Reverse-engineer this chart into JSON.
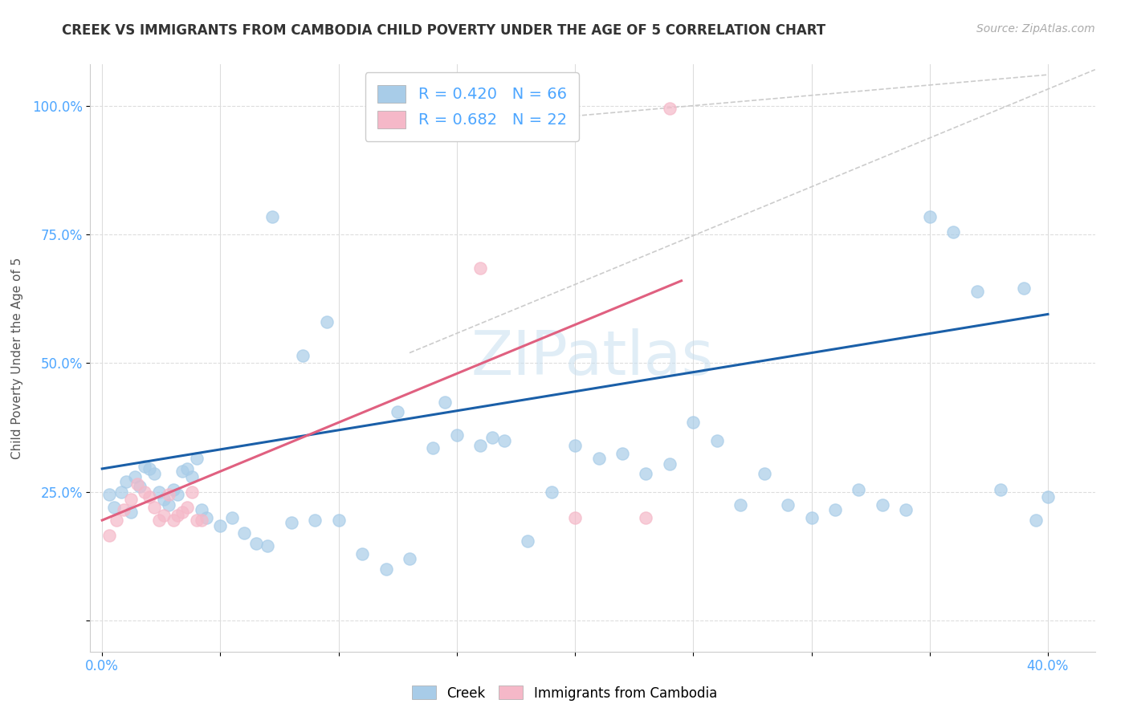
{
  "title": "CREEK VS IMMIGRANTS FROM CAMBODIA CHILD POVERTY UNDER THE AGE OF 5 CORRELATION CHART",
  "source": "Source: ZipAtlas.com",
  "ylabel": "Child Poverty Under the Age of 5",
  "x_ticks": [
    0.0,
    0.05,
    0.1,
    0.15,
    0.2,
    0.25,
    0.3,
    0.35,
    0.4
  ],
  "x_tick_labels": [
    "0.0%",
    "",
    "",
    "",
    "",
    "",
    "",
    "",
    "40.0%"
  ],
  "y_ticks": [
    0.0,
    0.25,
    0.5,
    0.75,
    1.0
  ],
  "y_tick_labels": [
    "",
    "25.0%",
    "50.0%",
    "75.0%",
    "100.0%"
  ],
  "xlim": [
    -0.005,
    0.42
  ],
  "ylim": [
    -0.06,
    1.08
  ],
  "creek_color": "#a8cce8",
  "cambodia_color": "#f5b8c8",
  "creek_line_color": "#1a5fa8",
  "cambodia_line_color": "#e06080",
  "ref_line_color": "#cccccc",
  "creek_R": 0.42,
  "creek_N": 66,
  "cambodia_R": 0.682,
  "cambodia_N": 22,
  "watermark": "ZIPatlas",
  "creek_line_x0": 0.0,
  "creek_line_y0": 0.295,
  "creek_line_x1": 0.4,
  "creek_line_y1": 0.595,
  "cambodia_line_x0": 0.0,
  "cambodia_line_y0": 0.195,
  "cambodia_line_x1": 0.245,
  "cambodia_line_y1": 0.66,
  "ref_line_x0": 0.2,
  "ref_line_y0": 0.98,
  "ref_line_x1": 0.4,
  "ref_line_y1": 1.06,
  "creek_scatter_x": [
    0.003,
    0.005,
    0.008,
    0.01,
    0.012,
    0.014,
    0.016,
    0.018,
    0.02,
    0.022,
    0.024,
    0.026,
    0.028,
    0.03,
    0.032,
    0.034,
    0.036,
    0.038,
    0.04,
    0.042,
    0.044,
    0.05,
    0.055,
    0.06,
    0.065,
    0.07,
    0.08,
    0.09,
    0.1,
    0.11,
    0.12,
    0.13,
    0.14,
    0.15,
    0.16,
    0.17,
    0.18,
    0.19,
    0.2,
    0.21,
    0.22,
    0.23,
    0.24,
    0.25,
    0.26,
    0.27,
    0.28,
    0.29,
    0.3,
    0.31,
    0.32,
    0.33,
    0.34,
    0.35,
    0.36,
    0.37,
    0.38,
    0.39,
    0.395,
    0.4,
    0.072,
    0.085,
    0.095,
    0.125,
    0.145,
    0.165
  ],
  "creek_scatter_y": [
    0.245,
    0.22,
    0.25,
    0.27,
    0.21,
    0.28,
    0.26,
    0.3,
    0.295,
    0.285,
    0.25,
    0.235,
    0.225,
    0.255,
    0.245,
    0.29,
    0.295,
    0.28,
    0.315,
    0.215,
    0.2,
    0.185,
    0.2,
    0.17,
    0.15,
    0.145,
    0.19,
    0.195,
    0.195,
    0.13,
    0.1,
    0.12,
    0.335,
    0.36,
    0.34,
    0.35,
    0.155,
    0.25,
    0.34,
    0.315,
    0.325,
    0.285,
    0.305,
    0.385,
    0.35,
    0.225,
    0.285,
    0.225,
    0.2,
    0.215,
    0.255,
    0.225,
    0.215,
    0.785,
    0.755,
    0.64,
    0.255,
    0.645,
    0.195,
    0.24,
    0.785,
    0.515,
    0.58,
    0.405,
    0.425,
    0.355
  ],
  "cambodia_scatter_x": [
    0.003,
    0.006,
    0.009,
    0.012,
    0.015,
    0.018,
    0.02,
    0.022,
    0.024,
    0.026,
    0.028,
    0.03,
    0.032,
    0.034,
    0.036,
    0.038,
    0.04,
    0.042,
    0.16,
    0.2,
    0.23,
    0.24
  ],
  "cambodia_scatter_y": [
    0.165,
    0.195,
    0.215,
    0.235,
    0.265,
    0.25,
    0.24,
    0.22,
    0.195,
    0.205,
    0.245,
    0.195,
    0.205,
    0.21,
    0.22,
    0.25,
    0.195,
    0.195,
    0.685,
    0.2,
    0.2,
    0.995
  ]
}
